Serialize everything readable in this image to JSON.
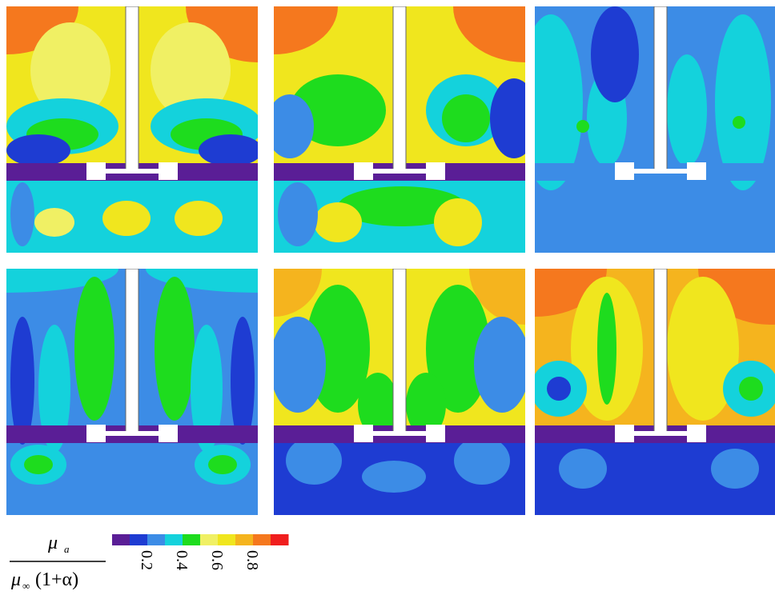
{
  "colorbar": {
    "range": [
      0,
      1
    ],
    "ticks": [
      0.2,
      0.4,
      0.6,
      0.8
    ],
    "colors": [
      "#5a1e96",
      "#1e3cd2",
      "#3c8ce6",
      "#14d2dc",
      "#1edc1e",
      "#f0f064",
      "#f0e61e",
      "#f5b41e",
      "#f5781e",
      "#f01e1e"
    ]
  },
  "label": {
    "numerator": {
      "symbol": "μ",
      "subscript": "a"
    },
    "denominator": {
      "symbol": "μ",
      "subscript": "∞",
      "factor": "(1+α)"
    }
  }
}
